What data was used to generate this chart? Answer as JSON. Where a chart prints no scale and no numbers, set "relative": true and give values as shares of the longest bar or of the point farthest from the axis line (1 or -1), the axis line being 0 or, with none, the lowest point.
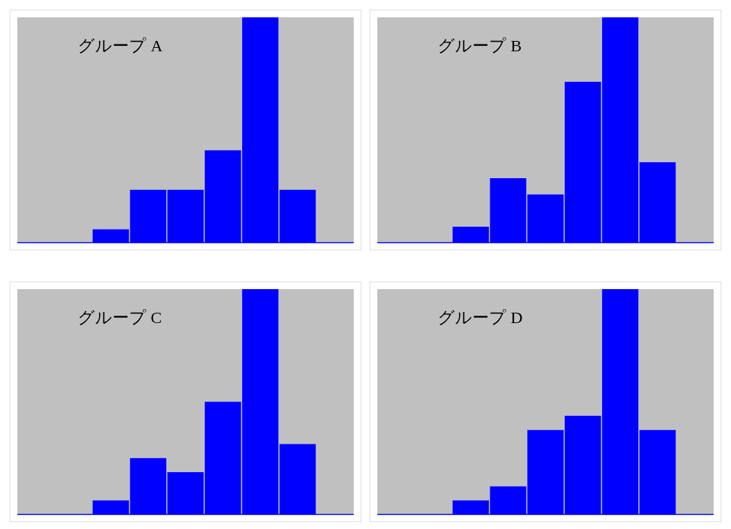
{
  "chart_data": [
    {
      "type": "bar",
      "relative": true,
      "categories": [
        null,
        null,
        null,
        null,
        null,
        null
      ],
      "values": [
        0.059,
        0.235,
        0.235,
        0.41,
        1,
        0.235
      ],
      "color": "#0000ff",
      "annotations": [
        "グループ A"
      ]
    },
    {
      "type": "bar",
      "relative": true,
      "categories": [
        null,
        null,
        null,
        null,
        null,
        null
      ],
      "values": [
        0.071,
        0.286,
        0.214,
        0.714,
        1,
        0.357
      ],
      "color": "#0000ff",
      "annotations": [
        "グループ B"
      ]
    },
    {
      "type": "bar",
      "relative": true,
      "categories": [
        null,
        null,
        null,
        null,
        null,
        null
      ],
      "values": [
        0.0625,
        0.25,
        0.1875,
        0.5,
        1,
        0.3125
      ],
      "color": "#0000ff",
      "annotations": [
        "グループ C"
      ]
    },
    {
      "type": "bar",
      "relative": true,
      "categories": [
        null,
        null,
        null,
        null,
        null,
        null
      ],
      "values": [
        0.0625,
        0.125,
        0.375,
        0.4375,
        1,
        0.375
      ],
      "color": "#0000ff",
      "annotations": [
        "グループ D"
      ]
    }
  ]
}
